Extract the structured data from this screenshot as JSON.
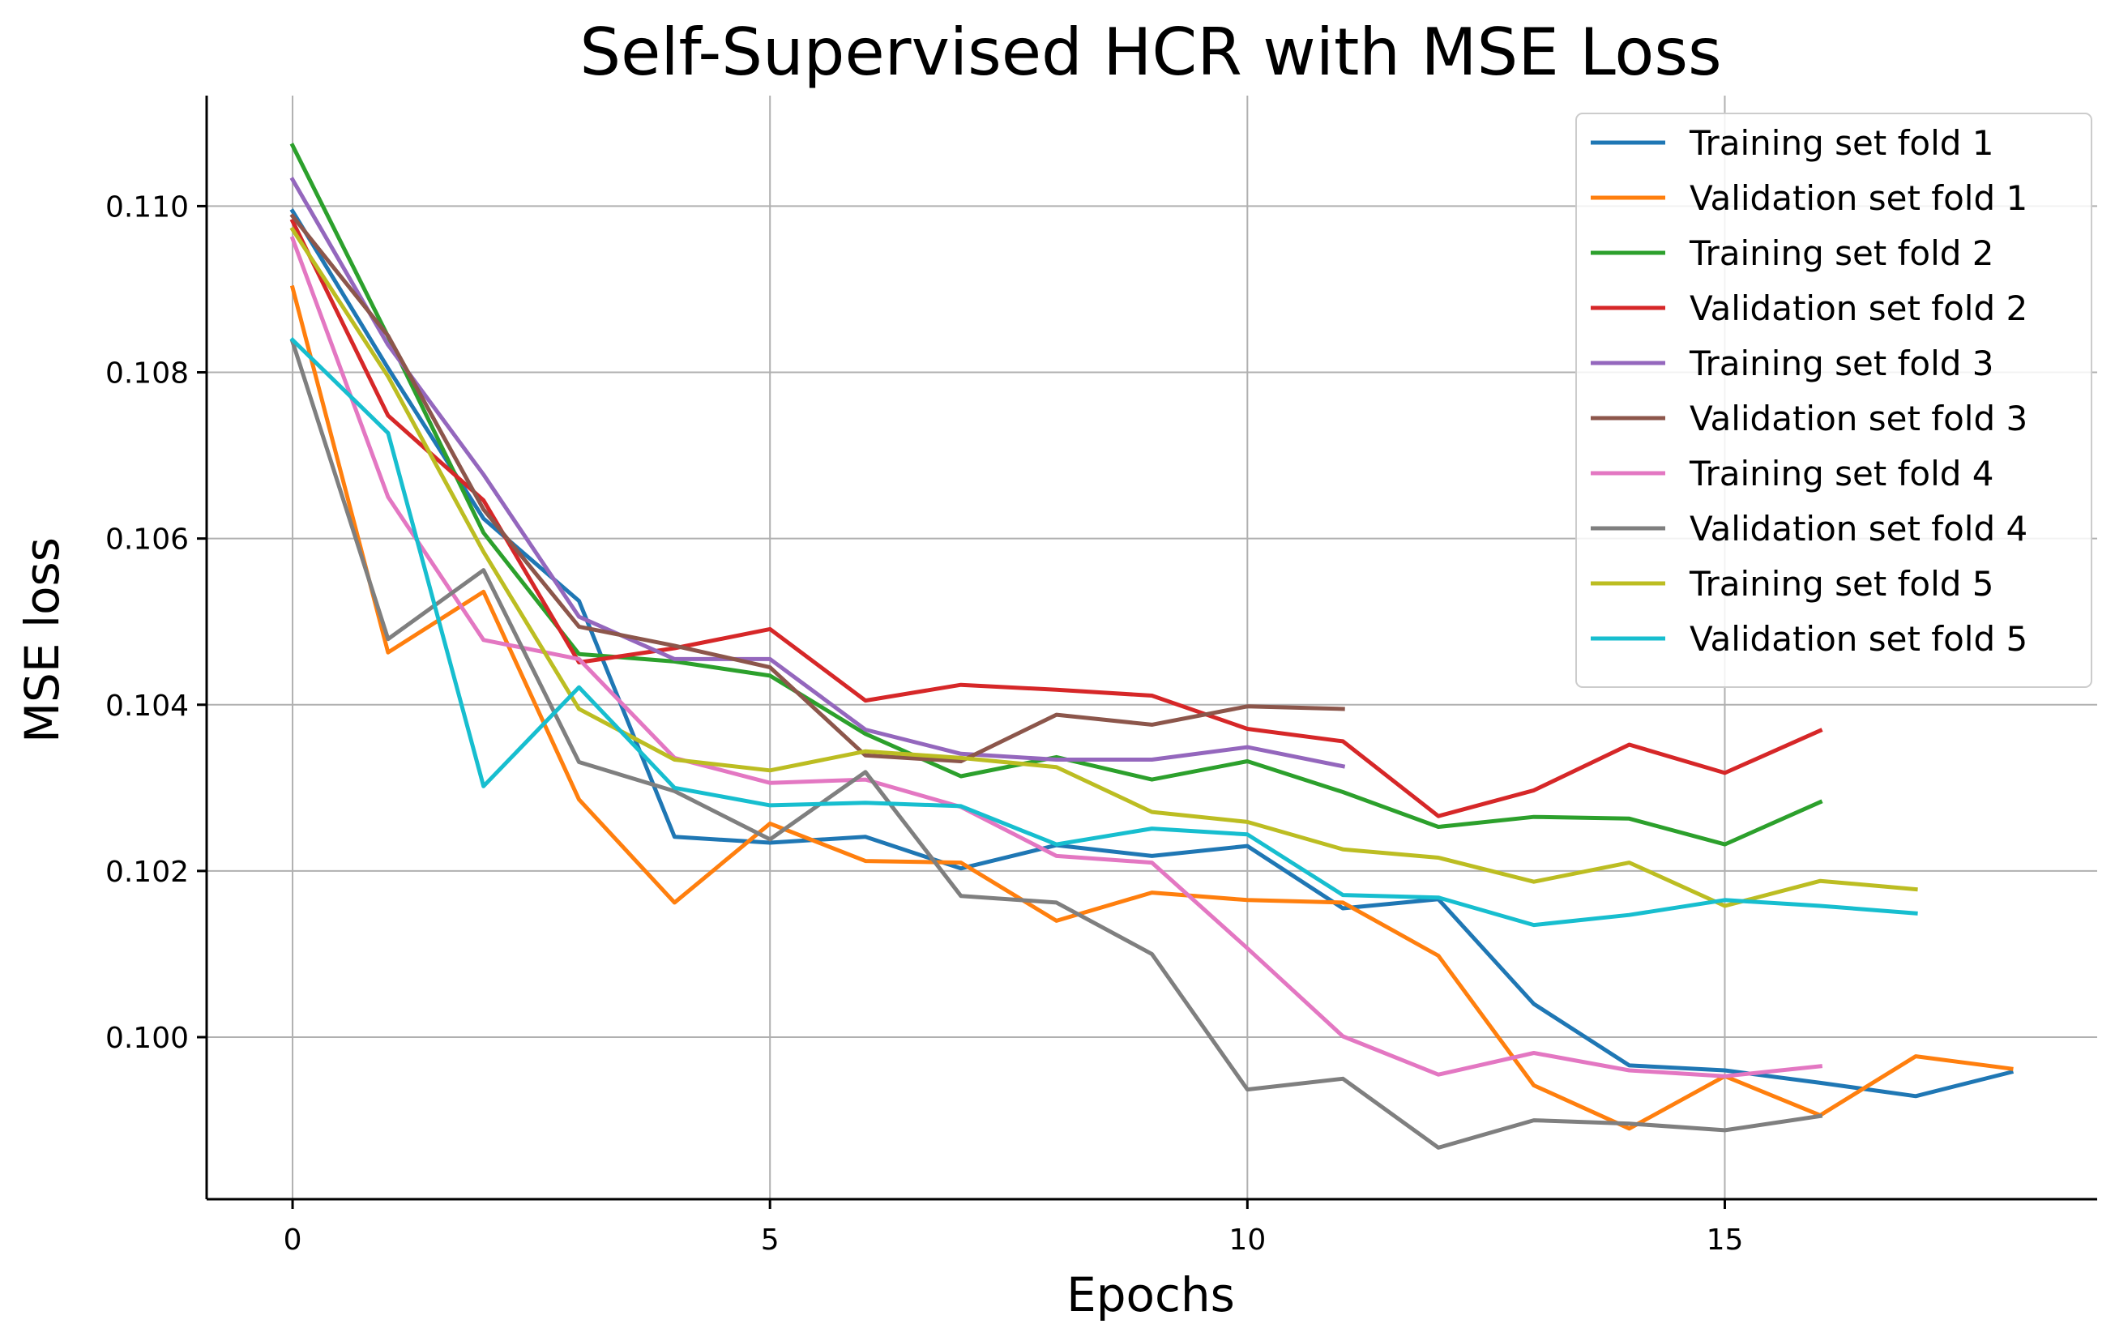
{
  "chart_data": {
    "type": "line",
    "title": "Self-Supervised HCR with MSE Loss",
    "xlabel": "Epochs",
    "ylabel": "MSE loss",
    "xlim": [
      -0.9,
      18.9
    ],
    "ylim": [
      0.09805,
      0.11133
    ],
    "xticks": [
      0,
      5,
      10,
      15
    ],
    "yticks": [
      0.1,
      0.102,
      0.104,
      0.106,
      0.108,
      0.11
    ],
    "ytick_labels": [
      "0.100",
      "0.102",
      "0.104",
      "0.106",
      "0.108",
      "0.110"
    ],
    "grid": true,
    "legend_position": "top-right",
    "series": [
      {
        "name": "Training set fold 1",
        "color": "#1f77b4",
        "x": [
          0,
          1,
          2,
          3,
          4,
          5,
          6,
          7,
          8,
          9,
          10,
          11,
          12,
          13,
          14,
          15,
          16,
          17,
          18
        ],
        "values": [
          0.10994,
          0.10805,
          0.10624,
          0.10525,
          0.10241,
          0.10234,
          0.10241,
          0.10203,
          0.10231,
          0.10218,
          0.1023,
          0.10155,
          0.10166,
          0.1004,
          0.09966,
          0.0996,
          0.09945,
          0.09929,
          0.09958
        ]
      },
      {
        "name": "Validation set fold 1",
        "color": "#ff7f0e",
        "x": [
          0,
          1,
          2,
          3,
          4,
          5,
          6,
          7,
          8,
          9,
          10,
          11,
          12,
          13,
          14,
          15,
          16,
          17,
          18
        ],
        "values": [
          0.10902,
          0.10463,
          0.10536,
          0.10286,
          0.10162,
          0.10257,
          0.10212,
          0.1021,
          0.1014,
          0.10174,
          0.10165,
          0.10162,
          0.10098,
          0.09942,
          0.0989,
          0.09953,
          0.09906,
          0.09977,
          0.09962
        ]
      },
      {
        "name": "Training set fold 2",
        "color": "#2ca02c",
        "x": [
          0,
          1,
          2,
          3,
          4,
          5,
          6,
          7,
          8,
          9,
          10,
          11,
          12,
          13,
          14,
          15,
          16
        ],
        "values": [
          0.11073,
          0.10843,
          0.10607,
          0.10461,
          0.10452,
          0.10435,
          0.10365,
          0.10314,
          0.10337,
          0.1031,
          0.10332,
          0.10295,
          0.10253,
          0.10265,
          0.10263,
          0.10232,
          0.10283
        ]
      },
      {
        "name": "Validation set fold 2",
        "color": "#d62728",
        "x": [
          0,
          1,
          2,
          3,
          4,
          5,
          6,
          7,
          8,
          9,
          10,
          11,
          12,
          13,
          14,
          15,
          16
        ],
        "values": [
          0.10982,
          0.10748,
          0.10646,
          0.10451,
          0.10468,
          0.10491,
          0.10405,
          0.10424,
          0.10418,
          0.10411,
          0.10371,
          0.10356,
          0.10266,
          0.10297,
          0.10352,
          0.10318,
          0.10369
        ]
      },
      {
        "name": "Training set fold 3",
        "color": "#9467bd",
        "x": [
          0,
          1,
          2,
          3,
          4,
          5,
          6,
          7,
          8,
          9,
          10,
          11
        ],
        "values": [
          0.11032,
          0.10833,
          0.10677,
          0.10506,
          0.10455,
          0.10455,
          0.1037,
          0.10341,
          0.10334,
          0.10334,
          0.10349,
          0.10326
        ]
      },
      {
        "name": "Validation set fold 3",
        "color": "#8c564b",
        "x": [
          0,
          1,
          2,
          3,
          4,
          5,
          6,
          7,
          8,
          9,
          10,
          11
        ],
        "values": [
          0.10988,
          0.10844,
          0.10635,
          0.10494,
          0.10471,
          0.10445,
          0.10339,
          0.10332,
          0.10388,
          0.10376,
          0.10398,
          0.10395
        ]
      },
      {
        "name": "Training set fold 4",
        "color": "#e377c2",
        "x": [
          0,
          1,
          2,
          3,
          4,
          5,
          6,
          7,
          8,
          9,
          10,
          11,
          12,
          13,
          14,
          15,
          16
        ],
        "values": [
          0.10961,
          0.1065,
          0.10478,
          0.10455,
          0.10336,
          0.10306,
          0.1031,
          0.10277,
          0.10218,
          0.1021,
          0.10107,
          0.10001,
          0.09955,
          0.09981,
          0.0996,
          0.09953,
          0.09965
        ]
      },
      {
        "name": "Validation set fold 4",
        "color": "#7f7f7f",
        "x": [
          0,
          1,
          2,
          3,
          4,
          5,
          6,
          7,
          8,
          9,
          10,
          11,
          12,
          13,
          14,
          15,
          16
        ],
        "values": [
          0.10837,
          0.10479,
          0.10562,
          0.10331,
          0.10296,
          0.10238,
          0.10319,
          0.1017,
          0.10162,
          0.101,
          0.09937,
          0.0995,
          0.09867,
          0.099,
          0.09896,
          0.09888,
          0.09905
        ]
      },
      {
        "name": "Training set fold 5",
        "color": "#bcbd22",
        "x": [
          0,
          1,
          2,
          3,
          4,
          5,
          6,
          7,
          8,
          9,
          10,
          11,
          12,
          13,
          14,
          15,
          16,
          17
        ],
        "values": [
          0.10972,
          0.10795,
          0.10584,
          0.10395,
          0.10334,
          0.10321,
          0.10344,
          0.10336,
          0.10325,
          0.10271,
          0.10259,
          0.10226,
          0.10216,
          0.10187,
          0.1021,
          0.10158,
          0.10188,
          0.10178
        ]
      },
      {
        "name": "Validation set fold 5",
        "color": "#17becf",
        "x": [
          0,
          1,
          2,
          3,
          4,
          5,
          6,
          7,
          8,
          9,
          10,
          11,
          12,
          13,
          14,
          15,
          16,
          17
        ],
        "values": [
          0.10839,
          0.10727,
          0.10302,
          0.10421,
          0.103,
          0.10279,
          0.10282,
          0.10278,
          0.10232,
          0.10251,
          0.10244,
          0.10171,
          0.10168,
          0.10135,
          0.10147,
          0.10165,
          0.10158,
          0.10149
        ]
      }
    ]
  }
}
